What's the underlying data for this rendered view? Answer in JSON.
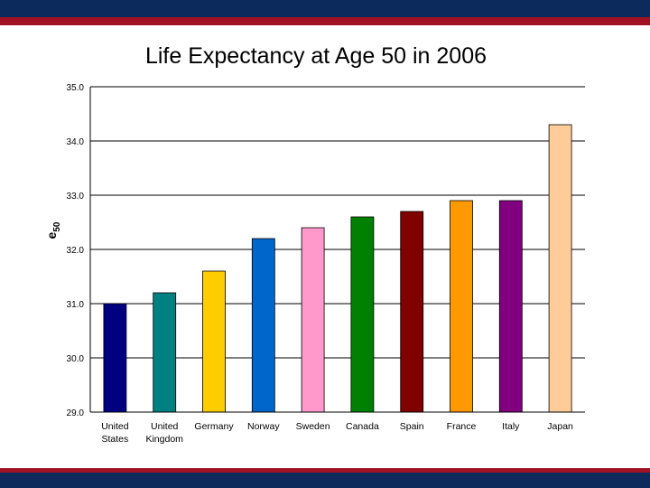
{
  "slide": {
    "colors": {
      "navy": "#0d2a5c",
      "red": "#a01224"
    }
  },
  "chart_data": {
    "type": "bar",
    "title": "Life Expectancy at Age 50 in 2006",
    "ylabel": "e",
    "ylabel_subscript": "50",
    "xlabel": "",
    "ylim": [
      29.0,
      35.0
    ],
    "yticks": [
      "29.0",
      "30.0",
      "31.0",
      "32.0",
      "33.0",
      "34.0",
      "35.0"
    ],
    "gridlines": true,
    "legend": "none",
    "categories": [
      [
        "United",
        "States"
      ],
      [
        "United",
        "Kingdom"
      ],
      [
        "Germany"
      ],
      [
        "Norway"
      ],
      [
        "Sweden"
      ],
      [
        "Canada"
      ],
      [
        "Spain"
      ],
      [
        "France"
      ],
      [
        "Italy"
      ],
      [
        "Japan"
      ]
    ],
    "values": [
      31.0,
      31.2,
      31.6,
      32.2,
      32.4,
      32.6,
      32.7,
      32.9,
      32.9,
      34.3
    ],
    "colors": [
      "#000080",
      "#008080",
      "#ffcc00",
      "#0066cc",
      "#ff99cc",
      "#008000",
      "#800000",
      "#ff9900",
      "#800080",
      "#ffcc99"
    ]
  }
}
